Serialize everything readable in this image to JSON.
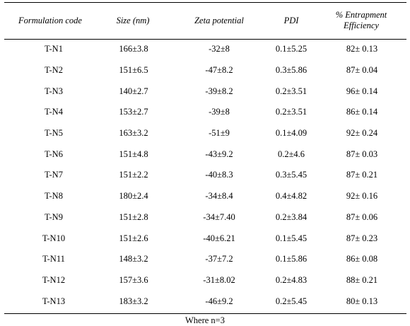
{
  "table": {
    "headers": {
      "formulation_code": "Formulation code",
      "size": "Size (nm)",
      "zeta": "Zeta potential",
      "pdi": "PDI",
      "ee_line1": "% Entrapment",
      "ee_line2": "Efficiency"
    },
    "rows": [
      {
        "code": "T-N1",
        "size": "166±3.8",
        "zeta": "-32±8",
        "pdi": "0.1±5.25",
        "ee": "82± 0.13"
      },
      {
        "code": "T-N2",
        "size": "151±6.5",
        "zeta": "-47±8.2",
        "pdi": "0.3±5.86",
        "ee": "87± 0.04"
      },
      {
        "code": "T-N3",
        "size": "140±2.7",
        "zeta": "-39±8.2",
        "pdi": "0.2±3.51",
        "ee": "96± 0.14"
      },
      {
        "code": "T-N4",
        "size": "153±2.7",
        "zeta": "-39±8",
        "pdi": "0.2±3.51",
        "ee": "86± 0.14"
      },
      {
        "code": "T-N5",
        "size": "163±3.2",
        "zeta": "-51±9",
        "pdi": "0.1±4.09",
        "ee": "92± 0.24"
      },
      {
        "code": "T-N6",
        "size": "151±4.8",
        "zeta": "-43±9.2",
        "pdi": "0.2±4.6",
        "ee": "87± 0.03"
      },
      {
        "code": "T-N7",
        "size": "151±2.2",
        "zeta": "-40±8.3",
        "pdi": "0.3±5.45",
        "ee": "87± 0.21"
      },
      {
        "code": "T-N8",
        "size": "180±2.4",
        "zeta": "-34±8.4",
        "pdi": "0.4±4.82",
        "ee": "92± 0.16"
      },
      {
        "code": "T-N9",
        "size": "151±2.8",
        "zeta": "-34±7.40",
        "pdi": "0.2±3.84",
        "ee": "87± 0.06"
      },
      {
        "code": "T-N10",
        "size": "151±2.6",
        "zeta": "-40±6.21",
        "pdi": "0.1±5.45",
        "ee": "87± 0.23"
      },
      {
        "code": "T-N11",
        "size": "148±3.2",
        "zeta": "-37±7.2",
        "pdi": "0.1±5.86",
        "ee": "86± 0.08"
      },
      {
        "code": "T-N12",
        "size": "157±3.6",
        "zeta": "-31±8.02",
        "pdi": "0.2±4.83",
        "ee": "88± 0.21"
      },
      {
        "code": "T-N13",
        "size": "183±3.2",
        "zeta": "-46±9.2",
        "pdi": "0.2±5.45",
        "ee": "80± 0.13"
      }
    ]
  },
  "footnote": "Where n=3"
}
